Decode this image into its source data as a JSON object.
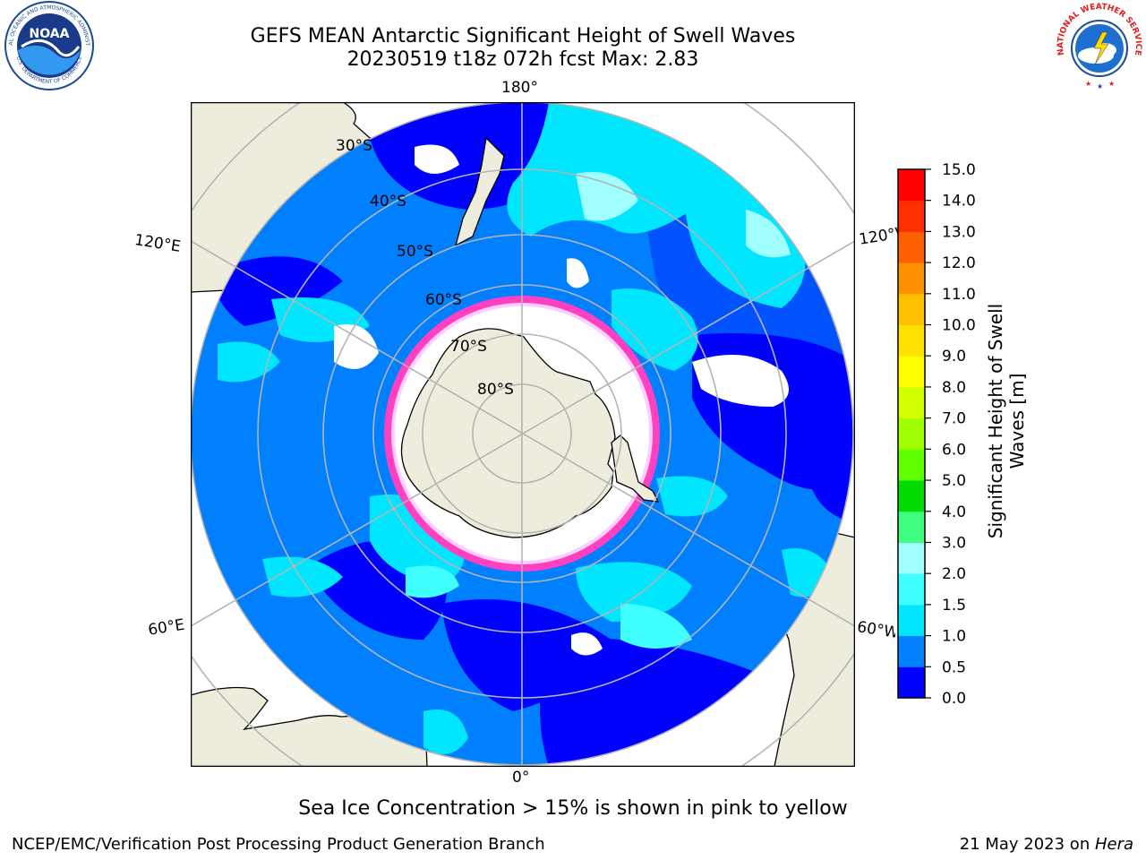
{
  "header": {
    "title_line1": "GEFS MEAN Antarctic Significant Height of Swell Waves",
    "title_line2": "20230519 t18z 072h fcst   Max: 2.83"
  },
  "logos": {
    "noaa_text": "NOAA",
    "noaa_ring_top": "NATIONAL OCEANIC AND ATMOSPHERIC ADMINISTRATION",
    "noaa_ring_bottom": "U.S. DEPARTMENT OF COMMERCE",
    "nws_ring": "NATIONAL WEATHER SERVICE"
  },
  "map": {
    "longitude_labels": {
      "top": "180°",
      "bottom": "0°",
      "left_upper": "120°E",
      "left_lower": "60°E",
      "right_upper": "120°W",
      "right_lower": "60°W"
    },
    "latitude_labels": [
      "30°S",
      "40°S",
      "50°S",
      "60°S",
      "70°S",
      "80°S"
    ],
    "colors": {
      "land": "#eeecdc",
      "ocean_low": "#0000ff",
      "ocean_mid": "#0080ff",
      "ice_edge": "#ff40c0",
      "grid": "#b4b4b4"
    }
  },
  "colorbar": {
    "label_line1": "Significant Height of Swell",
    "label_line2": "Waves [m]",
    "ticks": [
      "15.0",
      "14.0",
      "13.0",
      "12.0",
      "11.0",
      "10.0",
      "9.0",
      "8.0",
      "7.0",
      "6.0",
      "5.0",
      "4.0",
      "3.0",
      "2.0",
      "1.5",
      "1.0",
      "0.5",
      "0.0"
    ],
    "colors_bottom_to_top": [
      "#0000ff",
      "#0080ff",
      "#00e6ff",
      "#40ffff",
      "#a0ffff",
      "#40ff80",
      "#00dc00",
      "#60ff00",
      "#a0ff00",
      "#d0ff00",
      "#ffff00",
      "#ffe000",
      "#ffc000",
      "#ff9000",
      "#ff6000",
      "#ff3000",
      "#ff0000"
    ]
  },
  "notes": {
    "sea_ice": "Sea Ice Concentration > 15% is shown in pink to yellow",
    "credit": "NCEP/EMC/Verification Post Processing Product Generation Branch",
    "date": "21 May 2023 on ",
    "host": "Hera"
  }
}
